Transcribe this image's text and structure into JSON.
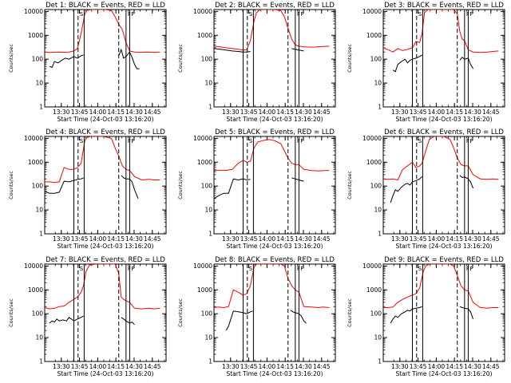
{
  "chart_data": {
    "type": "line",
    "layout": "3x3 grid",
    "x_ticks": [
      "13:30",
      "13:45",
      "14:00",
      "14:15",
      "14:30",
      "14:45"
    ],
    "x_tick_minutes": [
      13.67,
      28.67,
      43.67,
      58.67,
      73.67,
      88.67
    ],
    "x_range_minutes": [
      0,
      100
    ],
    "xlabel": "Start Time (24-Oct-03 13:16:20)",
    "ylabel": "Counts/sec",
    "yscale": "log",
    "ylim": [
      1,
      12000
    ],
    "y_ticks": [
      1,
      10,
      100,
      1000,
      10000
    ],
    "y_tick_labels": [
      "1",
      "10",
      "100",
      "1000",
      "10000"
    ],
    "series_colors": {
      "events": "#000000",
      "lld": "#ff0000"
    },
    "panels": [
      {
        "title": "Det 1: BLACK = Events, RED = LLD",
        "solid_lines_min": [
          24,
          32.5,
          67,
          70
        ],
        "dashed_lines_min": [
          27.5,
          61
        ],
        "flags": [
          "S",
          "F",
          "F"
        ],
        "lld": {
          "x": [
            0,
            4,
            8,
            12,
            16,
            20,
            24,
            27,
            30,
            33,
            35,
            38,
            42,
            46,
            50,
            55,
            58,
            61,
            64,
            67,
            70,
            74,
            78,
            84,
            90,
            95
          ],
          "y": [
            200,
            190,
            195,
            200,
            195,
            200,
            220,
            280,
            1200,
            8000,
            11000,
            12000,
            12000,
            12000,
            12000,
            11000,
            6000,
            3000,
            1700,
            500,
            220,
            200,
            195,
            200,
            195,
            200
          ]
        },
        "events": {
          "x": [
            4,
            6,
            8,
            11,
            14,
            17,
            20,
            24,
            27,
            30,
            32,
            32.5,
            61,
            63,
            65,
            67,
            70,
            72,
            74,
            76,
            78
          ],
          "y": [
            50,
            45,
            80,
            70,
            90,
            110,
            100,
            130,
            110,
            140,
            150,
            null,
            140,
            250,
            110,
            130,
            200,
            120,
            60,
            40,
            40
          ]
        }
      },
      {
        "title": "Det 2: BLACK = Events, RED = LLD",
        "solid_lines_min": [
          24,
          32.5,
          67,
          70
        ],
        "dashed_lines_min": [
          27.5,
          61
        ],
        "flags": [
          "S",
          "F",
          "F"
        ],
        "lld": {
          "x": [
            0,
            5,
            10,
            15,
            20,
            24,
            27,
            30,
            33,
            35,
            38,
            42,
            46,
            50,
            55,
            58,
            61,
            64,
            67,
            70,
            74,
            80,
            86,
            90,
            95
          ],
          "y": [
            350,
            330,
            300,
            280,
            260,
            240,
            250,
            600,
            4000,
            9000,
            12000,
            12000,
            12000,
            12000,
            11000,
            6000,
            2000,
            700,
            400,
            350,
            330,
            320,
            330,
            340,
            350
          ]
        },
        "events": {
          "x": [
            0,
            5,
            10,
            15,
            20,
            24,
            27,
            30,
            61,
            64,
            67,
            70,
            74
          ],
          "y": [
            280,
            260,
            240,
            220,
            210,
            200,
            200,
            210,
            null,
            280,
            260,
            240,
            220
          ]
        }
      },
      {
        "title": "Det 3: BLACK = Events, RED = LLD",
        "solid_lines_min": [
          24,
          32.5,
          67,
          70
        ],
        "dashed_lines_min": [
          27.5,
          61
        ],
        "flags": [
          "S",
          "F",
          "F"
        ],
        "lld": {
          "x": [
            0,
            4,
            8,
            12,
            16,
            20,
            24,
            27,
            30,
            32,
            34,
            37,
            42,
            48,
            55,
            58,
            61,
            63,
            65,
            67,
            70,
            74,
            80,
            86,
            90,
            95
          ],
          "y": [
            300,
            250,
            200,
            280,
            230,
            260,
            300,
            550,
            500,
            1200,
            9000,
            12000,
            12000,
            12000,
            12000,
            12000,
            8000,
            1500,
            700,
            600,
            250,
            200,
            190,
            200,
            210,
            220
          ]
        },
        "events": {
          "x": [
            8,
            10,
            12,
            15,
            18,
            20,
            22,
            24,
            27,
            30,
            32,
            61,
            63,
            65,
            67,
            70,
            72,
            74
          ],
          "y": [
            35,
            30,
            60,
            80,
            100,
            70,
            90,
            100,
            110,
            130,
            150,
            null,
            90,
            120,
            100,
            110,
            60,
            40
          ]
        }
      },
      {
        "title": "Det 4: BLACK = Events, RED = LLD",
        "solid_lines_min": [
          24,
          32.5,
          67,
          70
        ],
        "dashed_lines_min": [
          27.5,
          61
        ],
        "flags": [
          "S",
          "F",
          "F"
        ],
        "lld": {
          "x": [
            0,
            4,
            8,
            12,
            16,
            20,
            24,
            27,
            30,
            33,
            35,
            38,
            42,
            48,
            55,
            58,
            61,
            64,
            67,
            70,
            74,
            80,
            86,
            90,
            95
          ],
          "y": [
            150,
            150,
            140,
            150,
            600,
            500,
            500,
            600,
            900,
            8000,
            11000,
            12000,
            12000,
            12000,
            10000,
            4000,
            1800,
            700,
            500,
            450,
            250,
            180,
            190,
            180,
            180
          ]
        },
        "events": {
          "x": [
            0,
            4,
            8,
            12,
            16,
            20,
            24,
            27,
            30,
            32,
            61,
            63,
            65,
            67,
            70,
            72,
            74,
            77
          ],
          "y": [
            60,
            50,
            50,
            55,
            160,
            150,
            170,
            190,
            200,
            220,
            null,
            280,
            220,
            200,
            200,
            150,
            70,
            30
          ]
        }
      },
      {
        "title": "Det 5: BLACK = Events, RED = LLD",
        "solid_lines_min": [
          24,
          32.5,
          67,
          70
        ],
        "dashed_lines_min": [
          27.5,
          61
        ],
        "flags": [
          "S",
          "F",
          "F"
        ],
        "lld": {
          "x": [
            0,
            5,
            10,
            15,
            20,
            24,
            27,
            30,
            33,
            36,
            40,
            45,
            50,
            55,
            58,
            61,
            64,
            67,
            70,
            74,
            80,
            86,
            90,
            95
          ],
          "y": [
            450,
            450,
            450,
            500,
            900,
            1200,
            1000,
            1100,
            4000,
            7000,
            8000,
            9000,
            8000,
            6000,
            3000,
            1500,
            900,
            800,
            800,
            500,
            450,
            430,
            440,
            450
          ]
        },
        "events": {
          "x": [
            0,
            4,
            8,
            12,
            16,
            20,
            24,
            27,
            30,
            61,
            64,
            67,
            70,
            74
          ],
          "y": [
            30,
            40,
            50,
            50,
            200,
            180,
            200,
            180,
            190,
            null,
            220,
            200,
            180,
            160
          ]
        }
      },
      {
        "title": "Det 6: BLACK = Events, RED = LLD",
        "solid_lines_min": [
          24,
          32.5,
          67,
          70
        ],
        "dashed_lines_min": [
          27.5,
          61
        ],
        "flags": [
          "S",
          "F",
          "F"
        ],
        "lld": {
          "x": [
            0,
            4,
            8,
            12,
            16,
            20,
            24,
            27,
            30,
            32,
            35,
            38,
            42,
            46,
            50,
            55,
            58,
            61,
            64,
            67,
            70,
            74,
            80,
            86,
            90,
            95
          ],
          "y": [
            200,
            190,
            200,
            180,
            500,
            700,
            1000,
            600,
            700,
            900,
            3000,
            9000,
            12000,
            12000,
            12000,
            9000,
            4000,
            1500,
            800,
            700,
            700,
            300,
            200,
            190,
            200,
            190
          ]
        },
        "events": {
          "x": [
            6,
            8,
            10,
            12,
            15,
            18,
            20,
            22,
            24,
            27,
            30,
            32,
            61,
            63,
            65,
            67,
            70,
            72,
            74
          ],
          "y": [
            20,
            40,
            70,
            60,
            90,
            120,
            130,
            110,
            150,
            170,
            200,
            250,
            null,
            280,
            230,
            240,
            200,
            150,
            80
          ]
        }
      },
      {
        "title": "Det 7: BLACK = Events, RED = LLD",
        "solid_lines_min": [
          24,
          32.5,
          67,
          70
        ],
        "dashed_lines_min": [
          27.5,
          61
        ],
        "flags": [
          "S",
          "F",
          "F"
        ],
        "lld": {
          "x": [
            0,
            4,
            8,
            12,
            16,
            20,
            24,
            27,
            30,
            32,
            34,
            37,
            42,
            48,
            55,
            58,
            61,
            63,
            65,
            67,
            70,
            74,
            80,
            86,
            90,
            95
          ],
          "y": [
            180,
            160,
            170,
            200,
            210,
            300,
            400,
            500,
            800,
            1500,
            6000,
            11000,
            12000,
            12000,
            12000,
            12000,
            5000,
            500,
            400,
            350,
            300,
            170,
            160,
            170,
            160,
            170
          ]
        },
        "events": {
          "x": [
            4,
            6,
            8,
            10,
            12,
            15,
            18,
            20,
            22,
            24,
            27,
            30,
            32,
            61,
            63,
            65,
            67,
            70,
            72,
            74
          ],
          "y": [
            40,
            50,
            45,
            60,
            50,
            55,
            50,
            70,
            60,
            50,
            60,
            70,
            80,
            null,
            70,
            60,
            50,
            40,
            45,
            35
          ]
        }
      },
      {
        "title": "Det 8: BLACK = Events, RED = LLD",
        "solid_lines_min": [
          24,
          32.5,
          67,
          70
        ],
        "dashed_lines_min": [
          27.5,
          61
        ],
        "flags": [
          "S",
          "F",
          "F"
        ],
        "lld": {
          "x": [
            0,
            4,
            8,
            12,
            16,
            20,
            24,
            27,
            30,
            33,
            35,
            38,
            42,
            48,
            55,
            58,
            61,
            64,
            67,
            70,
            74,
            80,
            86,
            90,
            95
          ],
          "y": [
            180,
            190,
            180,
            200,
            1000,
            800,
            600,
            700,
            1500,
            9000,
            12000,
            12000,
            12000,
            12000,
            12000,
            10000,
            3000,
            1500,
            1000,
            800,
            200,
            190,
            180,
            190,
            180
          ]
        },
        "events": {
          "x": [
            10,
            12,
            16,
            20,
            24,
            27,
            30,
            32,
            61,
            63,
            65,
            67,
            70,
            72,
            74,
            76
          ],
          "y": [
            20,
            30,
            130,
            120,
            110,
            100,
            120,
            130,
            null,
            140,
            120,
            110,
            100,
            80,
            50,
            40
          ]
        }
      },
      {
        "title": "Det 9: BLACK = Events, RED = LLD",
        "solid_lines_min": [
          24,
          32.5,
          67,
          70
        ],
        "dashed_lines_min": [
          27.5,
          61
        ],
        "flags": [
          "S",
          "F",
          "F"
        ],
        "lld": {
          "x": [
            0,
            4,
            8,
            12,
            16,
            20,
            24,
            27,
            30,
            33,
            35,
            38,
            42,
            48,
            55,
            58,
            61,
            64,
            67,
            70,
            74,
            80,
            86,
            90,
            95
          ],
          "y": [
            180,
            180,
            190,
            300,
            400,
            500,
            600,
            700,
            1200,
            6000,
            10000,
            12000,
            12000,
            12000,
            12000,
            10000,
            4000,
            1500,
            1000,
            900,
            300,
            180,
            170,
            180,
            180
          ]
        },
        "events": {
          "x": [
            6,
            8,
            10,
            12,
            15,
            18,
            20,
            22,
            24,
            27,
            30,
            32,
            61,
            63,
            65,
            67,
            70,
            72,
            74
          ],
          "y": [
            40,
            60,
            80,
            70,
            100,
            120,
            140,
            130,
            160,
            170,
            180,
            200,
            null,
            200,
            180,
            170,
            160,
            120,
            60
          ]
        }
      }
    ]
  }
}
